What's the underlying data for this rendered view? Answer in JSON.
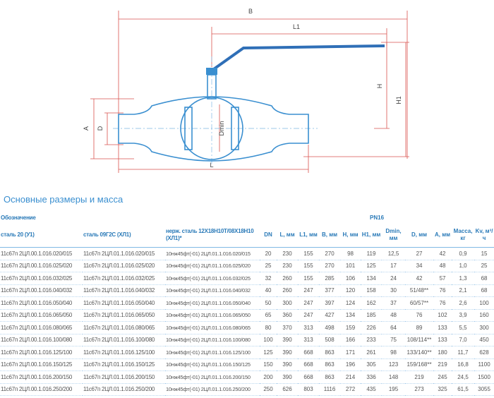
{
  "drawing": {
    "labels": [
      "B",
      "L1",
      "H",
      "H1",
      "A",
      "D",
      "Dmin",
      "L"
    ]
  },
  "section_title": "Основные размеры и масса",
  "table": {
    "group_headers": [
      "Обозначение",
      "PN16"
    ],
    "columns": [
      "сталь 20 (У1)",
      "сталь 09Г2С (ХЛ1)",
      "нерж. сталь 12Х18Н10Т/08Х18Н10 (ХЛ1)*",
      "DN",
      "L, мм",
      "L1, мм",
      "B, мм",
      "H, мм",
      "H1, мм",
      "Dmin, мм",
      "D, мм",
      "A, мм",
      "Масса, кг",
      "Kv, м³/ч"
    ],
    "rows": [
      [
        "11с67п 2ЦЛ.00.1.016.020/015",
        "11с67п 2ЦЛ.01.1.016.020/015",
        "10нж45фт(-01) 2ЦЛ.01.1.016.020/015",
        20,
        230,
        155,
        270,
        98,
        119,
        "12,5",
        27,
        42,
        "0,9",
        15
      ],
      [
        "11с67п 2ЦЛ.00.1.016.025/020",
        "11с67п 2ЦЛ.01.1.016.025/020",
        "10нж45фт(-01) 2ЦЛ.01.1.016.025/020",
        25,
        230,
        155,
        270,
        101,
        125,
        17,
        34,
        48,
        "1,0",
        25
      ],
      [
        "11с67п 2ЦЛ.00.1.016.032/025",
        "11с67п 2ЦЛ.01.1.016.032/025",
        "10нж45фт(-01) 2ЦЛ.01.1.016.032/025",
        32,
        260,
        155,
        285,
        106,
        134,
        24,
        42,
        57,
        "1,3",
        68
      ],
      [
        "11с67п 2ЦЛ.00.1.016.040/032",
        "11с67п 2ЦЛ.01.1.016.040/032",
        "10нж45фт(-01) 2ЦЛ.01.1.016.040/032",
        40,
        260,
        247,
        377,
        120,
        158,
        30,
        "51/48**",
        76,
        "2,1",
        68
      ],
      [
        "11с67п 2ЦЛ.00.1.016.050/040",
        "11с67п 2ЦЛ.01.1.016.050/040",
        "10нж45фт(-01) 2ЦЛ.01.1.016.050/040",
        50,
        300,
        247,
        397,
        124,
        162,
        37,
        "60/57**",
        76,
        "2,6",
        100
      ],
      [
        "11с67п 2ЦЛ.00.1.016.065/050",
        "11с67п 2ЦЛ.01.1.016.065/050",
        "10нж45фт(-01) 2ЦЛ.01.1.016.065/050",
        65,
        360,
        247,
        427,
        134,
        185,
        48,
        76,
        102,
        "3,9",
        160
      ],
      [
        "11с67п 2ЦЛ.00.1.016.080/065",
        "11с67п 2ЦЛ.01.1.016.080/065",
        "10нж45фт(-01) 2ЦЛ.01.1.016.080/065",
        80,
        370,
        313,
        498,
        159,
        226,
        64,
        89,
        133,
        "5,5",
        300
      ],
      [
        "11с67п 2ЦЛ.00.1.016.100/080",
        "11с67п 2ЦЛ.01.1.016.100/080",
        "10нж45фт(-01) 2ЦЛ.01.1.016.100/080",
        100,
        390,
        313,
        508,
        166,
        233,
        75,
        "108/114**",
        133,
        "7,0",
        450
      ],
      [
        "11с67п 2ЦЛ.00.1.016.125/100",
        "11с67п 2ЦЛ.01.1.016.125/100",
        "10нж45фт(-01) 2ЦЛ.01.1.016.125/100",
        125,
        390,
        668,
        863,
        171,
        261,
        98,
        "133/140**",
        180,
        "11,7",
        628
      ],
      [
        "11с67п 2ЦЛ.00.1.016.150/125",
        "11с67п 2ЦЛ.01.1.016.150/125",
        "10нж45фт(-01) 2ЦЛ.01.1.016.150/125",
        150,
        390,
        668,
        863,
        196,
        305,
        123,
        "159/168**",
        219,
        "16,8",
        1100
      ],
      [
        "11с67п 2ЦЛ.00.1.016.200/150",
        "11с67п 2ЦЛ.01.1.016.200/150",
        "10нж45фт(-01) 2ЦЛ.01.1.016.200/150",
        200,
        390,
        668,
        863,
        214,
        336,
        148,
        219,
        245,
        "24,5",
        1500
      ],
      [
        "11с67п 2ЦЛ.00.1.016.250/200",
        "11с67п 2ЦЛ.01.1.016.250/200",
        "10нж45фт(-01) 2ЦЛ.01.1.016.250/200",
        250,
        626,
        803,
        1116,
        272,
        435,
        195,
        273,
        325,
        "61,5",
        3055
      ]
    ]
  }
}
